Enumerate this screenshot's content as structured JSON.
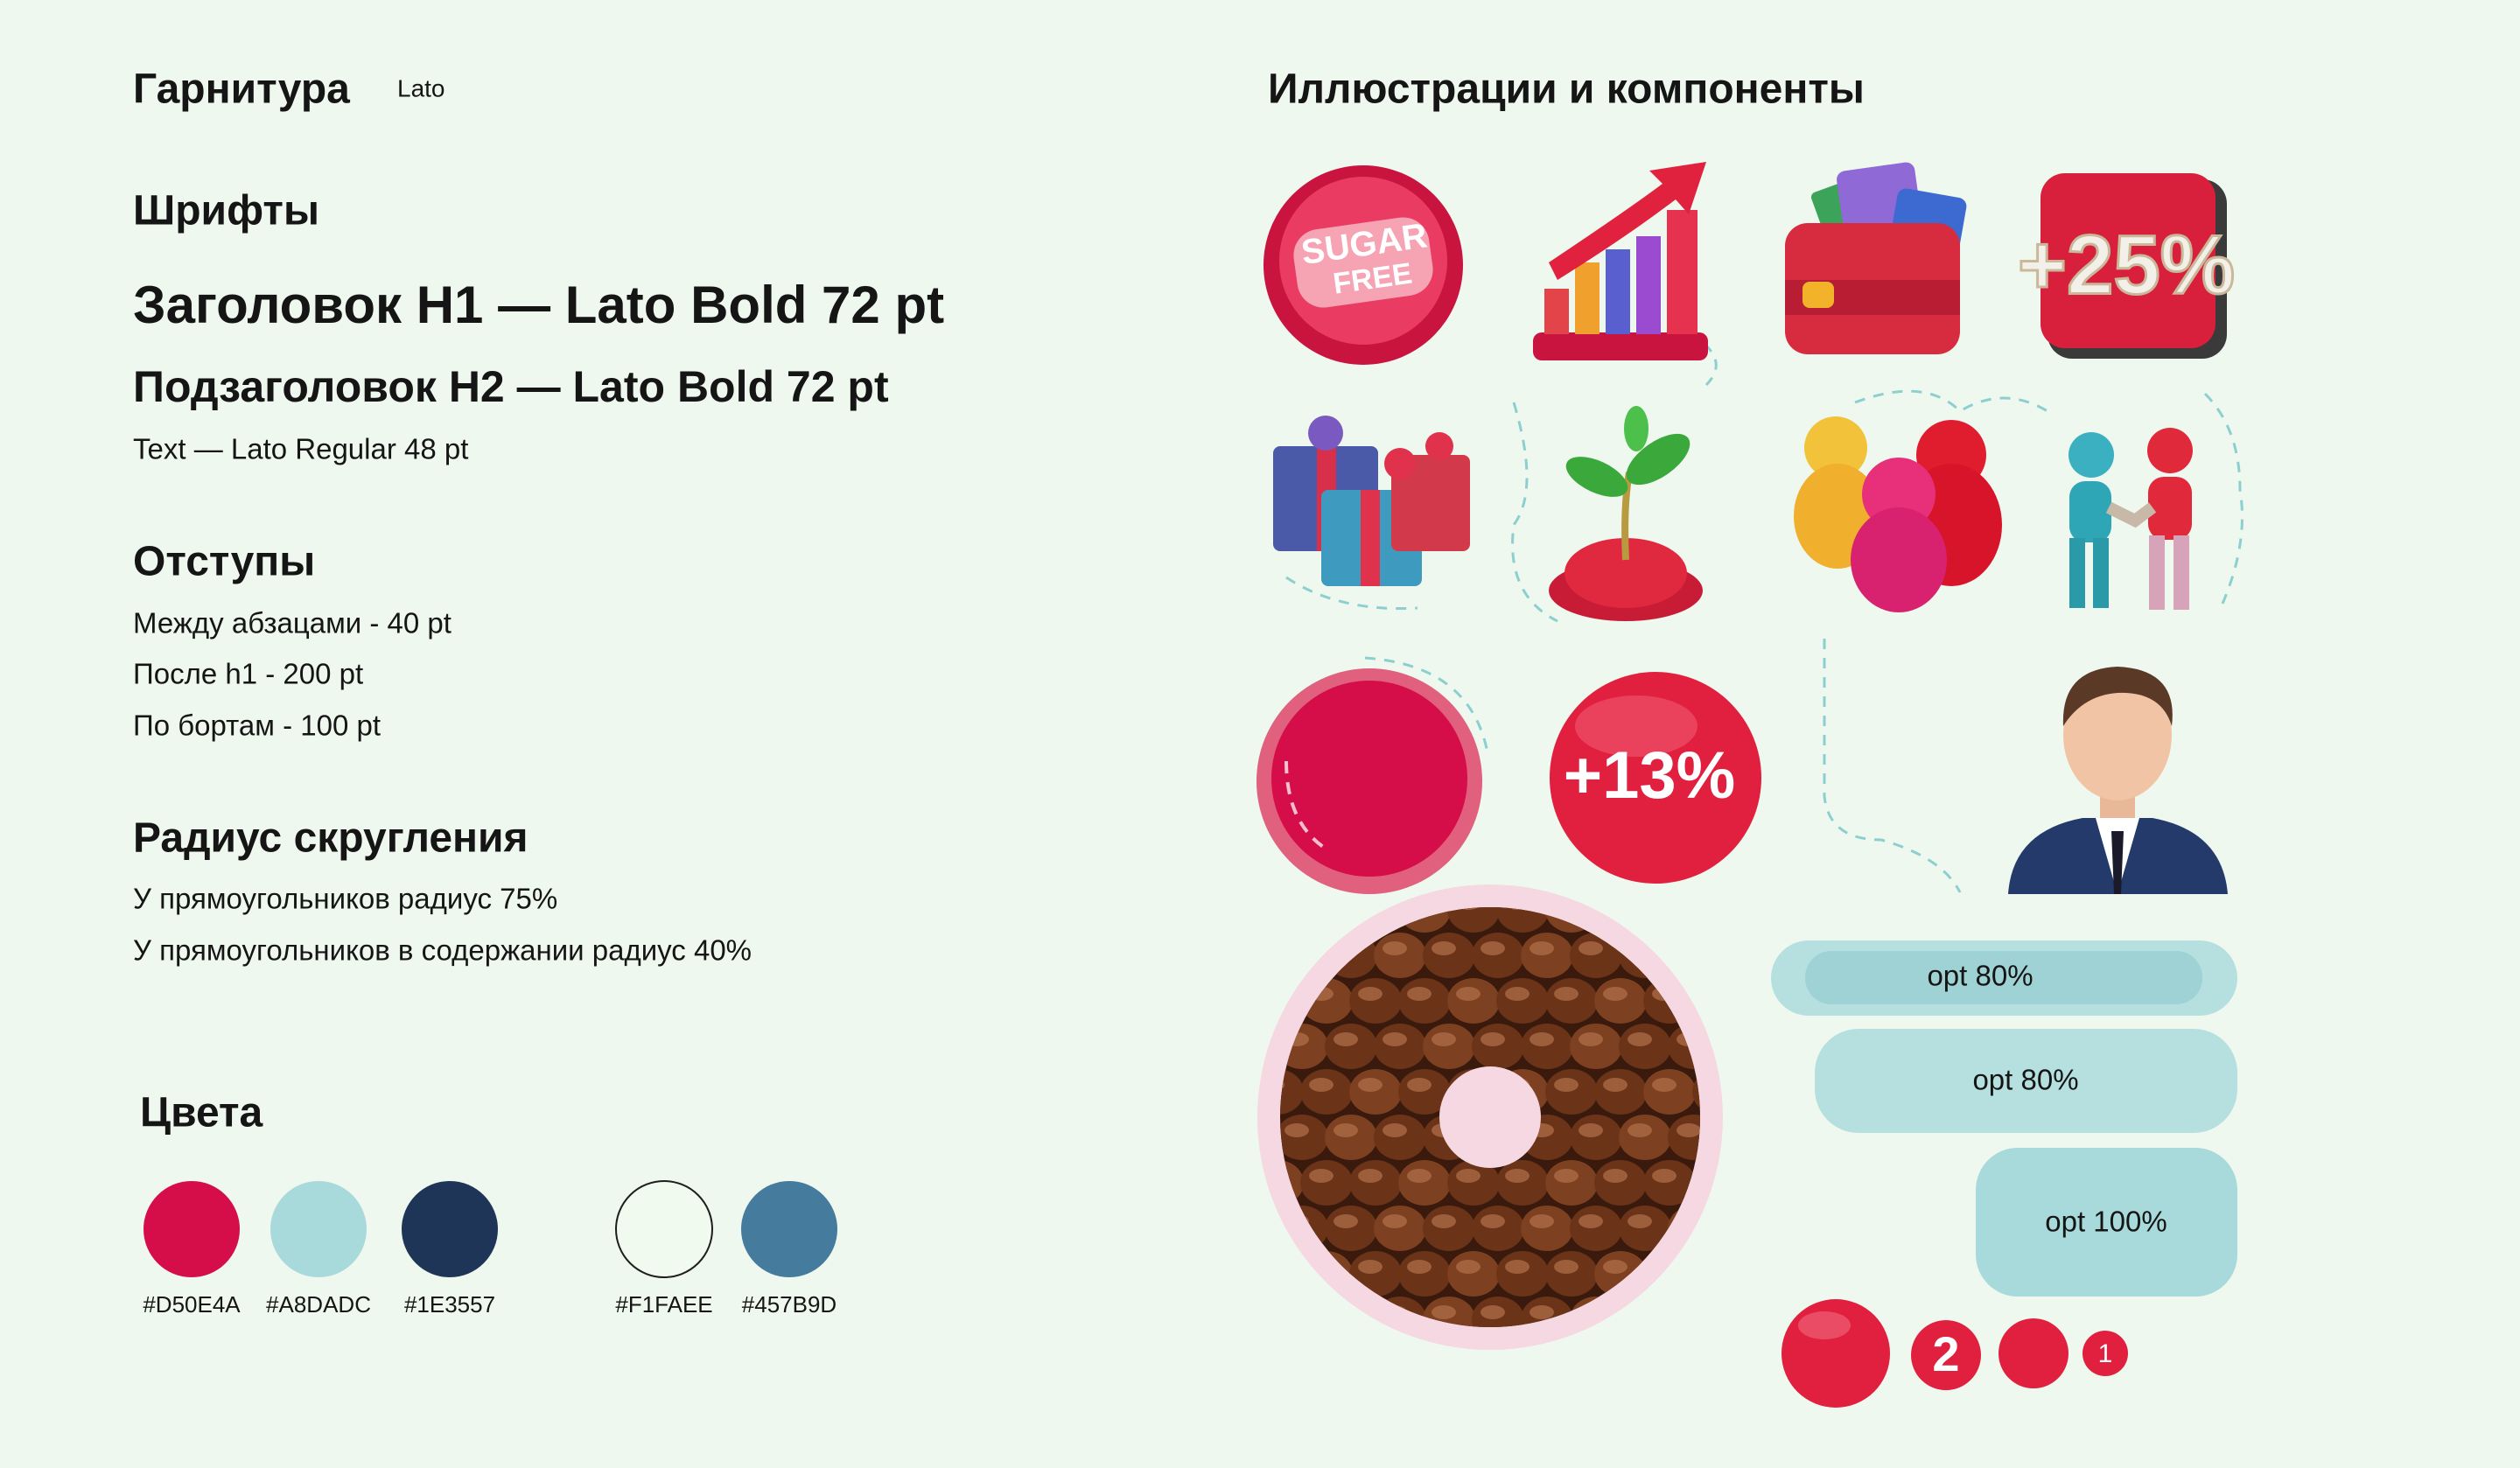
{
  "typography": {
    "title": "Гарнитура",
    "font": "Lato"
  },
  "fonts": {
    "title": "Шрифты",
    "h1": "Заголовок H1 — Lato Bold 72 pt",
    "h2": "Подзаголовок H2 — Lato Bold 72 pt",
    "text": "Text — Lato Regular 48 pt"
  },
  "spacing": {
    "title": "Отступы",
    "items": [
      "Между абзацами - 40 pt",
      "После h1 - 200 pt",
      "По бортам - 100 pt"
    ]
  },
  "radius": {
    "title": "Радиус скругления",
    "items": [
      "У прямоугольников радиус 75%",
      "У прямоугольников в содержании радиус 40%"
    ]
  },
  "colors": {
    "title": "Цвета",
    "swatches": [
      "#D50E4A",
      "#A8DADC",
      "#1E3557",
      "#F1FAEE",
      "#457B9D"
    ]
  },
  "illustrations": {
    "title": "Иллюстрации и компоненты",
    "badges": [
      "SUGAR",
      "FREE",
      "+25%",
      "+13%"
    ],
    "buttons": [
      "opt 80%",
      "opt 80%",
      "opt 100%"
    ],
    "counters": [
      "2",
      "1"
    ]
  }
}
